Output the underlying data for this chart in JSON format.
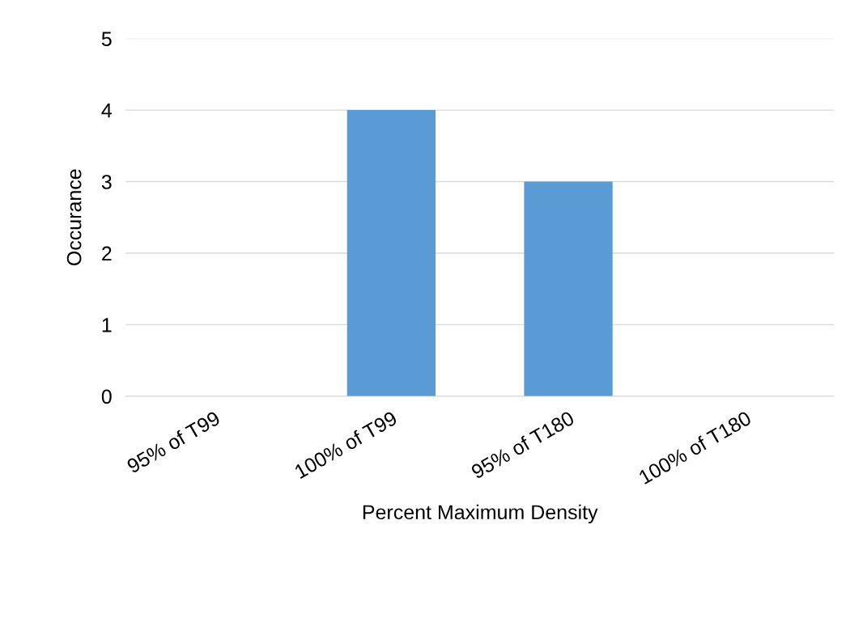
{
  "chart_data": {
    "type": "bar",
    "xlabel": "Percent Maximum Density",
    "ylabel": "Occurance",
    "categories": [
      "95% of T99",
      "100% of T99",
      "95% of T180",
      "100% of T180"
    ],
    "values": [
      0,
      4,
      3,
      0
    ],
    "color": "#5b9bd5",
    "ylim": [
      0,
      5
    ],
    "yticks": [
      0,
      1,
      2,
      3,
      4,
      5
    ],
    "grid": "y"
  }
}
